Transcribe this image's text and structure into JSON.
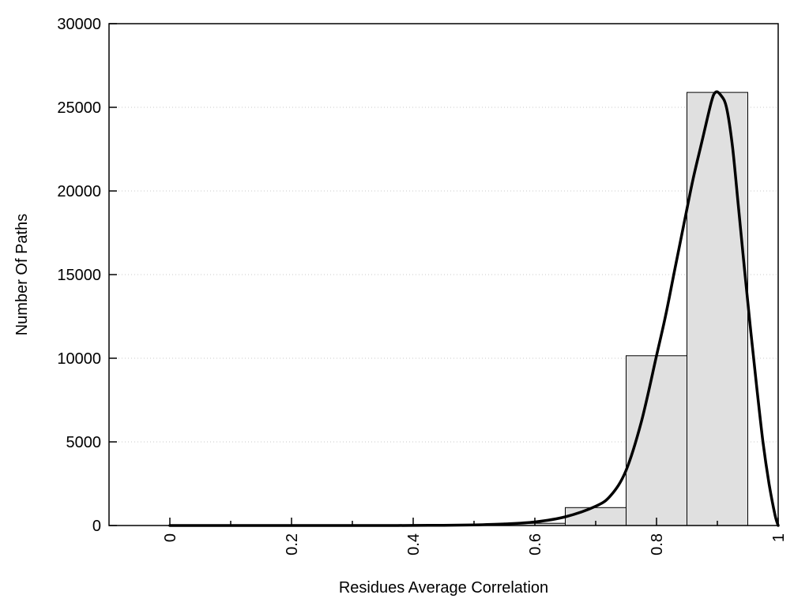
{
  "page": {
    "background": "#ffffff"
  },
  "chart_data": {
    "type": "bar",
    "subtype": "histogram-with-fitted-curve",
    "title": "",
    "xlabel": "Residues Average Correlation",
    "ylabel": "Number Of Paths",
    "xlim": [
      -0.1,
      1.0
    ],
    "ylim": [
      0,
      30000
    ],
    "grid": "horizontal-dotted",
    "legend": "none",
    "x_tick_label_rotation": -90,
    "x_ticks": [
      {
        "value": 0,
        "label": "0"
      },
      {
        "value": 0.2,
        "label": "0.2"
      },
      {
        "value": 0.4,
        "label": "0.4"
      },
      {
        "value": 0.6,
        "label": "0.6"
      },
      {
        "value": 0.8,
        "label": "0.8"
      },
      {
        "value": 1,
        "label": "1"
      }
    ],
    "x_minor_ticks": [
      0.1,
      0.3,
      0.5,
      0.7,
      0.9
    ],
    "y_ticks": [
      {
        "value": 0,
        "label": "0"
      },
      {
        "value": 5000,
        "label": "5000"
      },
      {
        "value": 10000,
        "label": "10000"
      },
      {
        "value": 15000,
        "label": "15000"
      },
      {
        "value": 20000,
        "label": "20000"
      },
      {
        "value": 25000,
        "label": "25000"
      },
      {
        "value": 30000,
        "label": "30000"
      }
    ],
    "grid_y_values": [
      5000,
      10000,
      15000,
      20000,
      25000
    ],
    "bin_width": 0.1,
    "bins": [
      {
        "x0": 0.55,
        "x1": 0.65,
        "count": 130
      },
      {
        "x0": 0.65,
        "x1": 0.75,
        "count": 1070
      },
      {
        "x0": 0.75,
        "x1": 0.85,
        "count": 10150
      },
      {
        "x0": 0.85,
        "x1": 0.95,
        "count": 25890
      }
    ],
    "curve": {
      "name": "fitted-distribution",
      "points": [
        [
          0,
          0
        ],
        [
          0.1,
          0
        ],
        [
          0.2,
          0
        ],
        [
          0.3,
          0
        ],
        [
          0.35,
          0
        ],
        [
          0.4,
          5
        ],
        [
          0.45,
          15
        ],
        [
          0.5,
          40
        ],
        [
          0.55,
          95
        ],
        [
          0.6,
          210
        ],
        [
          0.65,
          520
        ],
        [
          0.7,
          1150
        ],
        [
          0.725,
          1800
        ],
        [
          0.75,
          3300
        ],
        [
          0.775,
          6200
        ],
        [
          0.8,
          10150
        ],
        [
          0.815,
          12550
        ],
        [
          0.83,
          15300
        ],
        [
          0.846,
          18200
        ],
        [
          0.86,
          20700
        ],
        [
          0.875,
          23000
        ],
        [
          0.89,
          25300
        ],
        [
          0.897,
          25900
        ],
        [
          0.905,
          25750
        ],
        [
          0.915,
          25000
        ],
        [
          0.925,
          22600
        ],
        [
          0.935,
          18900
        ],
        [
          0.945,
          15200
        ],
        [
          0.955,
          11600
        ],
        [
          0.965,
          8200
        ],
        [
          0.975,
          5000
        ],
        [
          0.985,
          2500
        ],
        [
          0.995,
          600
        ],
        [
          1.0,
          0
        ]
      ]
    },
    "colors": {
      "bar_fill": "#e0e0e0",
      "bar_border": "#000000",
      "curve": "#000000",
      "axis": "#000000",
      "grid": "#c8c8c8",
      "text": "#000000"
    }
  }
}
